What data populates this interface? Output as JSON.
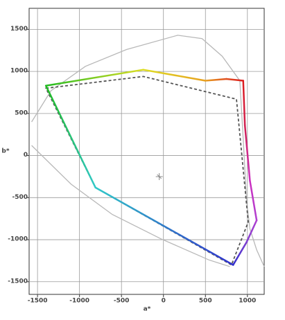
{
  "chart_data": {
    "type": "line",
    "x_label": "a*",
    "y_label": "b*",
    "xlim": [
      -1600,
      1200
    ],
    "ylim": [
      -1650,
      1750
    ],
    "xticks": [
      -1500,
      -1000,
      -500,
      0,
      500,
      1000
    ],
    "yticks": [
      -1500,
      -1000,
      -500,
      0,
      500,
      1000,
      1500
    ],
    "grid": true,
    "series": [
      {
        "color": "#b8b8b8",
        "style": "solid",
        "closed": false,
        "x": [
          -1570,
          -1340,
          -930,
          -440,
          170,
          460,
          700,
          910,
          950,
          990,
          1030,
          1110,
          1200,
          null,
          -1570,
          -1100,
          -610,
          -30,
          540,
          790
        ],
        "values": [
          400,
          770,
          1060,
          1260,
          1430,
          1390,
          1180,
          890,
          200,
          -540,
          -870,
          -1120,
          -1320,
          null,
          120,
          -340,
          -700,
          -990,
          -1240,
          -1320
        ]
      },
      {
        "color": "#555555",
        "style": "dashed",
        "closed": true,
        "x": [
          -1400,
          -240,
          870,
          1010,
          810,
          -810
        ],
        "values": [
          800,
          940,
          670,
          -790,
          -1300,
          -380
        ]
      },
      {
        "style": "gradient",
        "closed": true,
        "x": [
          -1400,
          -240,
          500,
          750,
          950,
          970,
          1030,
          1110,
          990,
          830,
          -810
        ],
        "values": [
          830,
          1020,
          890,
          910,
          890,
          360,
          -300,
          -770,
          -1030,
          -1300,
          -380
        ],
        "colors": [
          "#22bb22",
          "#dddd22",
          "#e8a020",
          "#e05020",
          "#dd2020",
          "#d02050",
          "#cc30c0",
          "#b040d0",
          "#8040d0",
          "#3030cc",
          "#30c8c8"
        ]
      }
    ],
    "marker": {
      "x": -50,
      "y": -250,
      "color": "#888888"
    }
  }
}
